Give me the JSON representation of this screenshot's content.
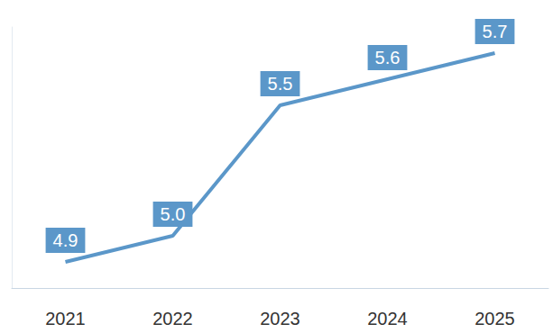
{
  "chart_data": {
    "type": "line",
    "categories": [
      "2021",
      "2022",
      "2023",
      "2024",
      "2025"
    ],
    "values": [
      4.9,
      5.0,
      5.5,
      5.6,
      5.7
    ],
    "value_labels": [
      "4.9",
      "5.0",
      "5.5",
      "5.6",
      "5.7"
    ],
    "color": "#5b97c9",
    "ylim": [
      4.8,
      5.8
    ],
    "grid": false,
    "data_labels": true,
    "tick_labels": "x"
  }
}
